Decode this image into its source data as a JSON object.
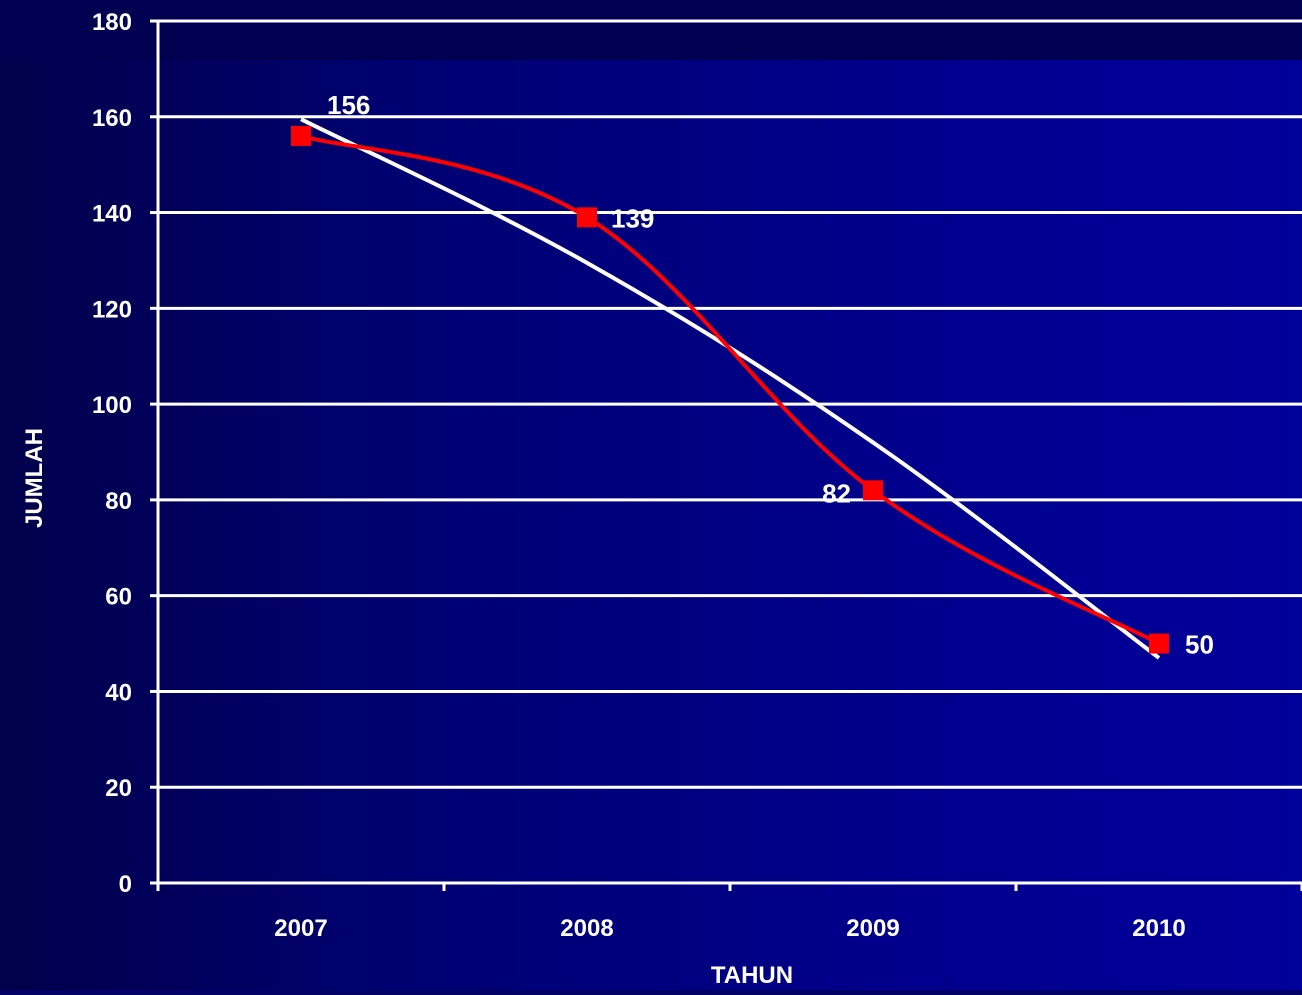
{
  "chart_data": {
    "type": "line",
    "categories": [
      "2007",
      "2008",
      "2009",
      "2010"
    ],
    "series": [
      {
        "values": [
          156,
          139,
          82,
          50
        ],
        "color": "#ff0000",
        "marker": "square",
        "smooth": true
      },
      {
        "trendline": true,
        "values": [
          159.5,
          129.5,
          92,
          47
        ],
        "color": "#ffffff"
      }
    ],
    "data_labels": [
      "156",
      "139",
      "82",
      "50"
    ],
    "xlabel": "TAHUN",
    "ylabel": "JUMLAH",
    "ylim": [
      0,
      180
    ],
    "yticks": [
      0,
      20,
      40,
      60,
      80,
      100,
      120,
      140,
      160,
      180
    ],
    "grid": true,
    "legend": "none",
    "colors": {
      "background": "#000080",
      "header_band": "#000050",
      "gridline": "#ffffff",
      "text": "#ffffff"
    }
  }
}
